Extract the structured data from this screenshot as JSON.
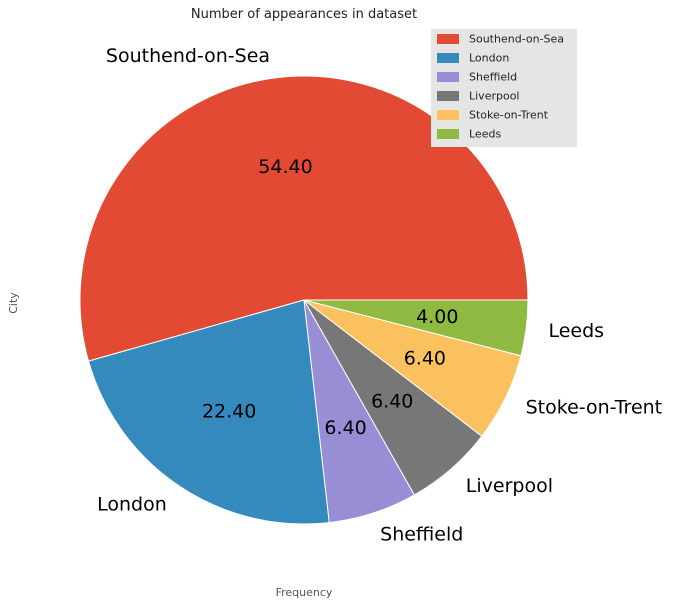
{
  "chart_data": {
    "type": "pie",
    "title": "Number of appearances in dataset",
    "xlabel": "Frequency",
    "ylabel": "City",
    "categories": [
      "Southend-on-Sea",
      "London",
      "Sheffield",
      "Liverpool",
      "Stoke-on-Trent",
      "Leeds"
    ],
    "values": [
      54.4,
      22.4,
      6.4,
      6.4,
      6.4,
      4.0
    ],
    "value_labels": [
      "54.40",
      "22.40",
      "6.40",
      "6.40",
      "6.40",
      "4.00"
    ],
    "colors": [
      "#E24A33",
      "#348ABD",
      "#988ED5",
      "#777777",
      "#FBC15E",
      "#8EBA42"
    ],
    "start_angle_deg": 0,
    "direction": "counterclockwise",
    "legend": {
      "position": "top-right",
      "background": "#E5E5E5"
    }
  }
}
